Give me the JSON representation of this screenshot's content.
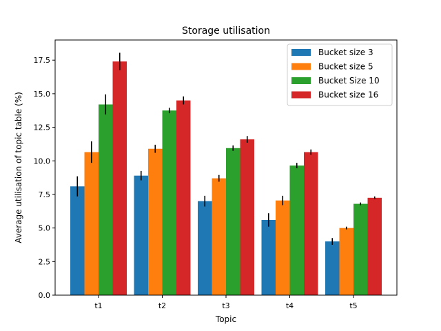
{
  "chart_data": {
    "type": "bar",
    "title": "Storage utilisation",
    "xlabel": "Topic",
    "ylabel": "Average utilisation of topic table (%)",
    "categories": [
      "t1",
      "t2",
      "t3",
      "t4",
      "t5"
    ],
    "ylim": [
      0,
      19
    ],
    "yticks": [
      "0.0",
      "2.5",
      "5.0",
      "7.5",
      "10.0",
      "12.5",
      "15.0",
      "17.5"
    ],
    "grid": false,
    "legend_position": "top-right",
    "error_bars": true,
    "series": [
      {
        "name": "Bucket size 3",
        "color": "#1f77b4",
        "values": [
          8.1,
          8.9,
          7.0,
          5.6,
          4.0
        ],
        "errors": [
          0.75,
          0.35,
          0.4,
          0.5,
          0.25
        ]
      },
      {
        "name": "Bucket size 5",
        "color": "#ff7f0e",
        "values": [
          10.65,
          10.9,
          8.7,
          7.05,
          5.0
        ],
        "errors": [
          0.8,
          0.3,
          0.25,
          0.35,
          0.1
        ]
      },
      {
        "name": "Bucket Size 10",
        "color": "#2ca02c",
        "values": [
          14.2,
          13.75,
          10.95,
          9.65,
          6.8
        ],
        "errors": [
          0.75,
          0.2,
          0.2,
          0.2,
          0.1
        ]
      },
      {
        "name": "Bucket size 16",
        "color": "#d62728",
        "values": [
          17.4,
          14.5,
          11.6,
          10.65,
          7.25
        ],
        "errors": [
          0.65,
          0.3,
          0.25,
          0.2,
          0.1
        ]
      }
    ]
  }
}
